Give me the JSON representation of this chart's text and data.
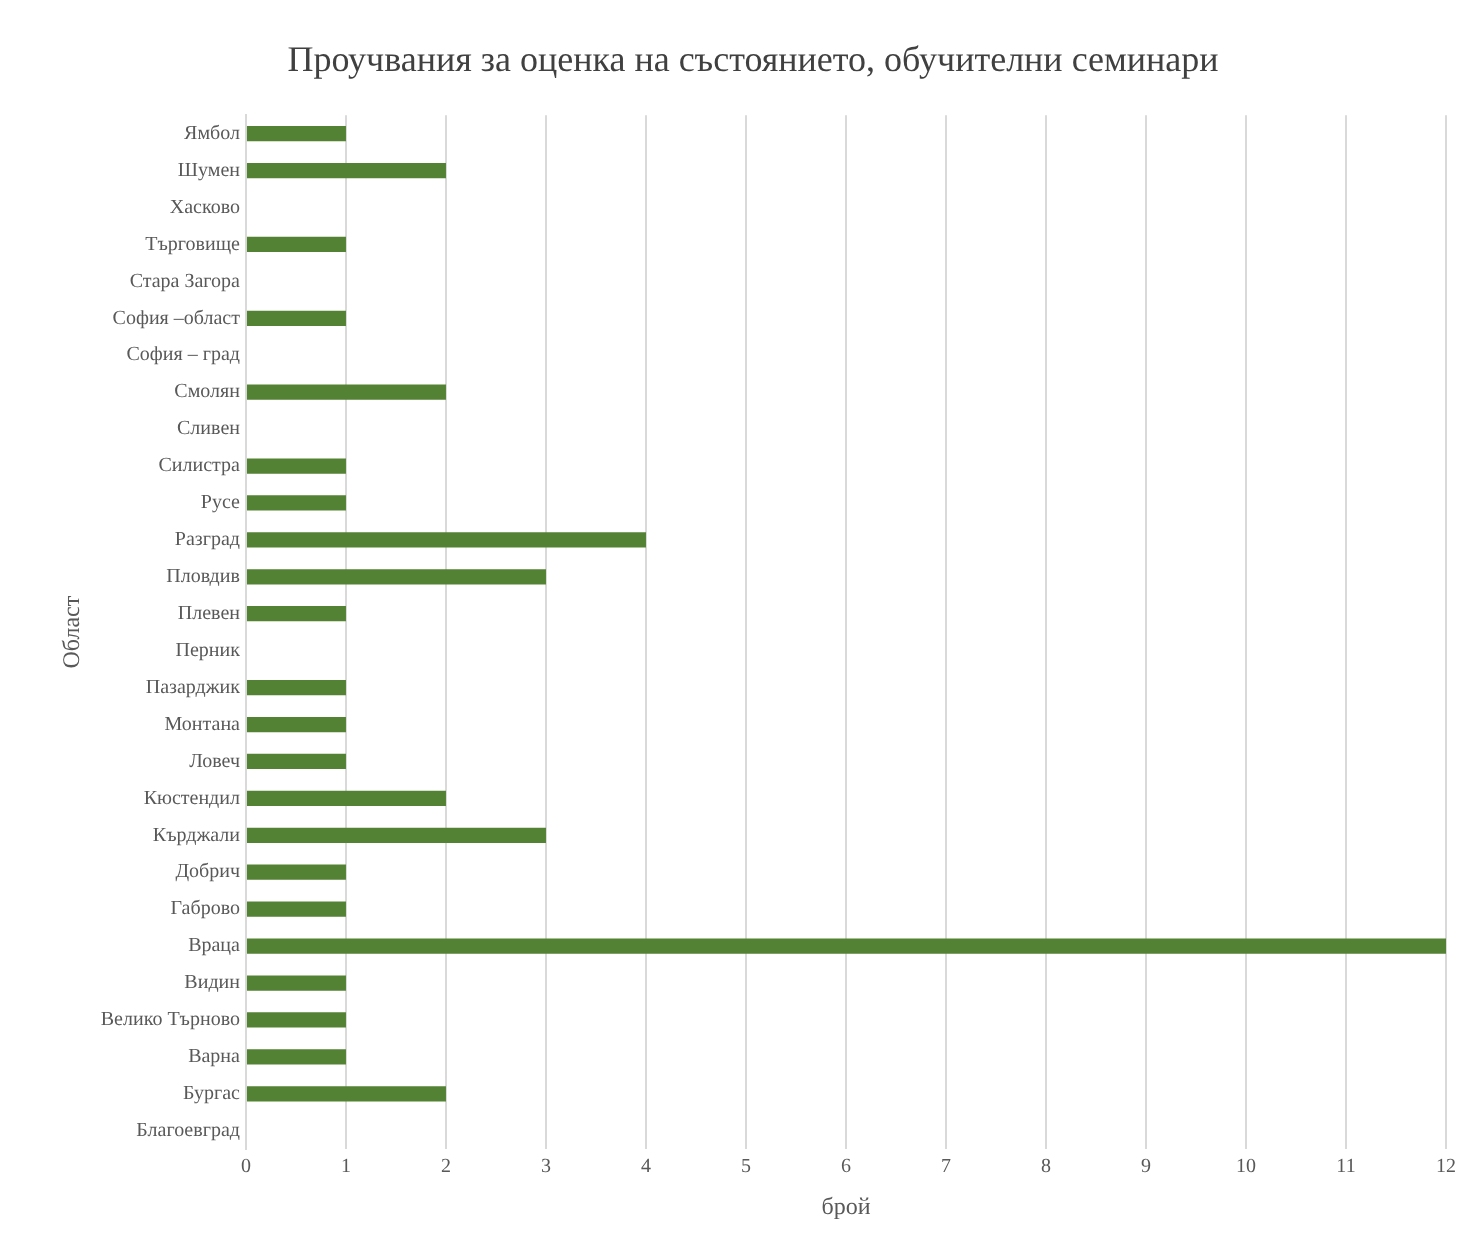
{
  "chart_data": {
    "type": "bar",
    "orientation": "horizontal",
    "title": "Проучвания за оценка на състоянието, обучителни семинари",
    "xlabel": "брой",
    "ylabel": "Област",
    "categories": [
      "Ямбол",
      "Шумен",
      "Хасково",
      "Търговище",
      "Стара Загора",
      "София –област",
      "София – град",
      "Смолян",
      "Сливен",
      "Силистра",
      "Русе",
      "Разград",
      "Пловдив",
      "Плевен",
      "Перник",
      "Пазарджик",
      "Монтана",
      "Ловеч",
      "Кюстендил",
      "Кърджали",
      "Добрич",
      "Габрово",
      "Враца",
      "Видин",
      "Велико Търново",
      "Варна",
      "Бургас",
      "Благоевград"
    ],
    "values": [
      1,
      2,
      0,
      1,
      0,
      1,
      0,
      2,
      0,
      1,
      1,
      4,
      3,
      1,
      0,
      1,
      1,
      1,
      2,
      3,
      1,
      1,
      12,
      1,
      1,
      1,
      2,
      0
    ],
    "color": "#548235",
    "xlim": [
      0,
      12
    ],
    "xticks": [
      0,
      1,
      2,
      3,
      4,
      5,
      6,
      7,
      8,
      9,
      10,
      11,
      12
    ],
    "grid": "x",
    "legend": false
  }
}
